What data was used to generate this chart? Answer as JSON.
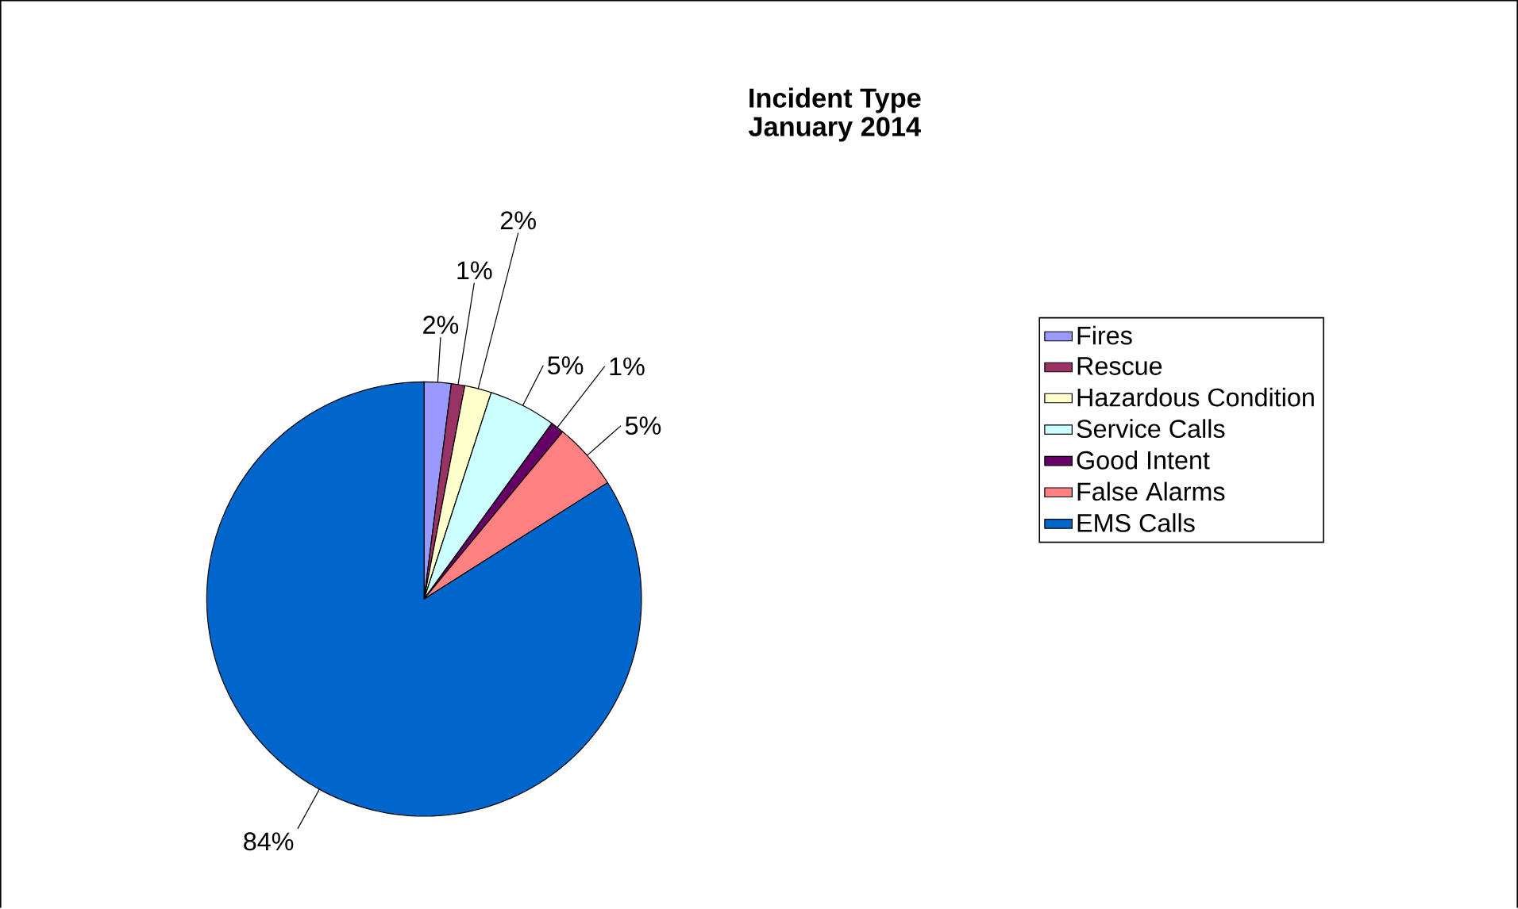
{
  "chart_data": {
    "type": "pie",
    "title": "Incident Type",
    "subtitle": "January 2014",
    "categories": [
      "Fires",
      "Rescue",
      "Hazardous Condition",
      "Service Calls",
      "Good Intent",
      "False Alarms",
      "EMS Calls"
    ],
    "values": [
      2,
      1,
      2,
      5,
      1,
      5,
      84
    ],
    "value_labels": [
      "2%",
      "1%",
      "2%",
      "5%",
      "1%",
      "5%",
      "84%"
    ],
    "colors": [
      "#9999ff",
      "#993366",
      "#ffffcc",
      "#ccffff",
      "#660066",
      "#ff8080",
      "#0066cc"
    ],
    "legend": "right"
  }
}
